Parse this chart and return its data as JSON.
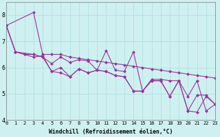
{
  "xlabel": "Windchill (Refroidissement éolien,°C)",
  "background_color": "#cff0f0",
  "grid_color": "#aadddd",
  "line_color": "#993399",
  "xlim": [
    0,
    23
  ],
  "ylim": [
    4,
    8.5
  ],
  "yticks": [
    4,
    5,
    6,
    7,
    8
  ],
  "xticks": [
    0,
    1,
    2,
    3,
    4,
    5,
    6,
    7,
    8,
    9,
    10,
    11,
    12,
    13,
    14,
    15,
    16,
    17,
    18,
    19,
    20,
    21,
    22,
    23
  ],
  "series": [
    [
      7.6,
      null,
      null,
      8.1,
      6.5,
      6.5,
      6.5,
      6.4,
      6.35,
      6.3,
      6.25,
      6.2,
      6.15,
      6.1,
      6.05,
      6.0,
      5.95,
      5.9,
      5.85,
      5.8,
      5.75,
      5.7,
      5.65,
      5.6
    ],
    [
      7.6,
      6.6,
      6.5,
      6.5,
      6.4,
      6.15,
      6.4,
      6.2,
      6.3,
      6.25,
      5.9,
      6.65,
      5.9,
      5.85,
      6.6,
      5.1,
      5.55,
      5.55,
      5.5,
      5.5,
      4.9,
      5.5,
      4.35,
      4.6
    ],
    [
      7.6,
      6.6,
      6.5,
      6.4,
      6.45,
      5.85,
      6.0,
      5.65,
      5.95,
      5.8,
      5.9,
      5.85,
      5.7,
      5.65,
      5.1,
      5.1,
      5.5,
      5.5,
      4.9,
      5.5,
      4.35,
      4.3,
      4.9,
      4.6
    ],
    [
      7.6,
      6.6,
      null,
      6.5,
      6.4,
      5.85,
      5.8,
      5.65,
      5.95,
      5.8,
      5.9,
      5.85,
      5.7,
      5.65,
      5.1,
      5.1,
      5.5,
      5.5,
      4.9,
      5.5,
      4.35,
      4.95,
      4.95,
      4.6
    ]
  ]
}
